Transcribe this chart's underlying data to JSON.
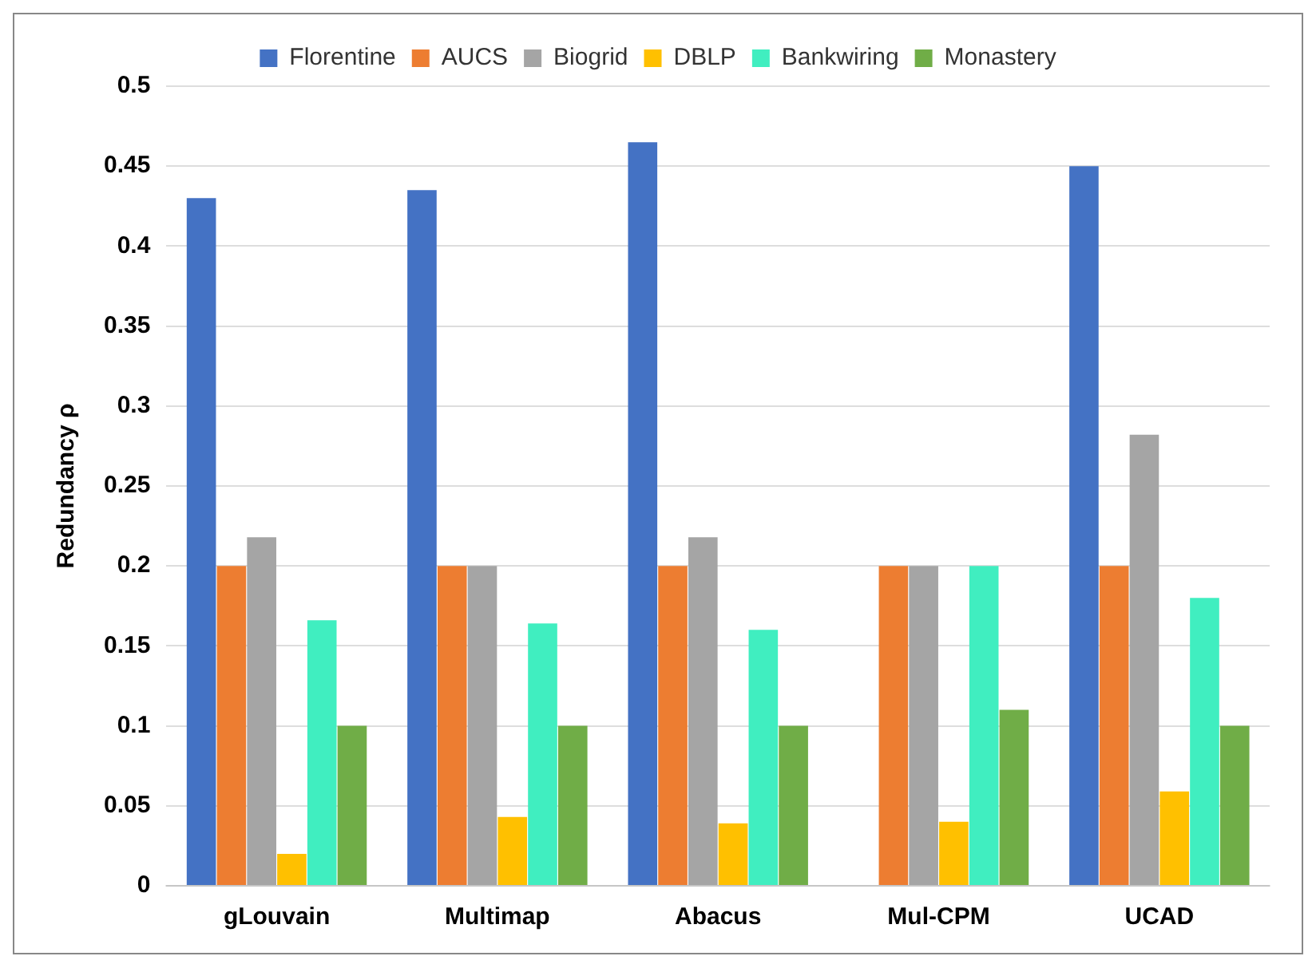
{
  "chart_data": {
    "type": "bar",
    "ylabel": "Redundancy ρ",
    "categories": [
      "gLouvain",
      "Multimap",
      "Abacus",
      "Mul-CPM",
      "UCAD"
    ],
    "series": [
      {
        "name": "Florentine",
        "color": "#4472c4",
        "values": [
          0.43,
          0.435,
          0.465,
          0,
          0.45
        ]
      },
      {
        "name": "AUCS",
        "color": "#ed7d31",
        "values": [
          0.2,
          0.2,
          0.2,
          0.2,
          0.2
        ]
      },
      {
        "name": "Biogrid",
        "color": "#a5a5a5",
        "values": [
          0.218,
          0.2,
          0.218,
          0.2,
          0.282
        ]
      },
      {
        "name": "DBLP",
        "color": "#ffc000",
        "values": [
          0.02,
          0.043,
          0.039,
          0.04,
          0.059
        ]
      },
      {
        "name": "Bankwiring",
        "color": "#40eec0",
        "values": [
          0.166,
          0.164,
          0.16,
          0.2,
          0.18
        ]
      },
      {
        "name": "Monastery",
        "color": "#70ad47",
        "values": [
          0.1,
          0.1,
          0.1,
          0.11,
          0.1
        ]
      }
    ],
    "ylim": [
      0,
      0.5
    ],
    "yticks": [
      0,
      0.05,
      0.1,
      0.15,
      0.2,
      0.25,
      0.3,
      0.35,
      0.4,
      0.45,
      0.5
    ],
    "grid": "y",
    "legend": "top"
  }
}
